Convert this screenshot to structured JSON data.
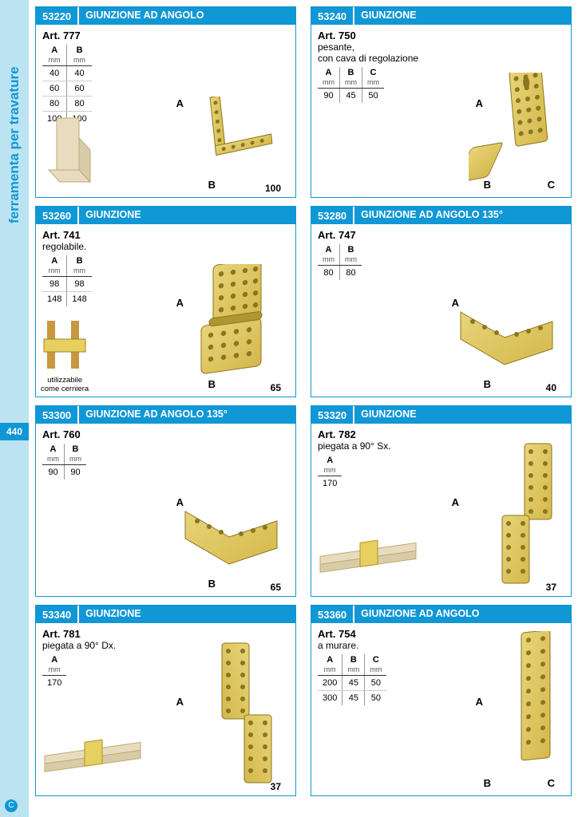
{
  "page": {
    "number": "440",
    "side_label": "ferramenta per travature",
    "accent_color": "#1097d5",
    "light_bg": "#bce3f2",
    "background": "#ffffff"
  },
  "cards": [
    {
      "code": "53220",
      "title": "GIUNZIONE AD ANGOLO",
      "art": "Art. 777",
      "sub": "",
      "columns": [
        "A",
        "B"
      ],
      "rows": [
        [
          "40",
          "40"
        ],
        [
          "60",
          "60"
        ],
        [
          "80",
          "80"
        ],
        [
          "100",
          "100"
        ]
      ],
      "dim_labels": {
        "A": "A",
        "B": "B",
        "len": "100"
      },
      "bracket_color": "#d4b84a"
    },
    {
      "code": "53240",
      "title": "GIUNZIONE",
      "art": "Art. 750",
      "sub": "pesante,\ncon cava di regolazione",
      "columns": [
        "A",
        "B",
        "C"
      ],
      "rows": [
        [
          "90",
          "45",
          "50"
        ]
      ],
      "dim_labels": {
        "A": "A",
        "B": "B",
        "C": "C"
      },
      "bracket_color": "#d4b84a"
    },
    {
      "code": "53260",
      "title": "GIUNZIONE",
      "art": "Art. 741",
      "sub": "regolabile.",
      "columns": [
        "A",
        "B"
      ],
      "rows": [
        [
          "98",
          "98"
        ],
        [
          "148",
          "148"
        ]
      ],
      "dim_labels": {
        "A": "A",
        "B": "B",
        "len": "65"
      },
      "note": "utilizzabile\ncome cerniera",
      "bracket_color": "#d4b84a"
    },
    {
      "code": "53280",
      "title": "GIUNZIONE AD ANGOLO 135°",
      "art": "Art. 747",
      "sub": "",
      "columns": [
        "A",
        "B"
      ],
      "rows": [
        [
          "80",
          "80"
        ]
      ],
      "dim_labels": {
        "A": "A",
        "B": "B",
        "len": "40"
      },
      "bracket_color": "#d4b84a"
    },
    {
      "code": "53300",
      "title": "GIUNZIONE AD ANGOLO 135°",
      "art": "Art. 760",
      "sub": "",
      "columns": [
        "A",
        "B"
      ],
      "rows": [
        [
          "90",
          "90"
        ]
      ],
      "dim_labels": {
        "A": "A",
        "B": "B",
        "len": "65"
      },
      "bracket_color": "#d4b84a"
    },
    {
      "code": "53320",
      "title": "GIUNZIONE",
      "art": "Art. 782",
      "sub": "piegata a 90° Sx.",
      "columns": [
        "A"
      ],
      "rows": [
        [
          "170"
        ]
      ],
      "dim_labels": {
        "A": "A",
        "len": "37"
      },
      "bracket_color": "#d4b84a"
    },
    {
      "code": "53340",
      "title": "GIUNZIONE",
      "art": "Art. 781",
      "sub": "piegata a 90° Dx.",
      "columns": [
        "A"
      ],
      "rows": [
        [
          "170"
        ]
      ],
      "dim_labels": {
        "A": "A",
        "len": "37"
      },
      "bracket_color": "#d4b84a"
    },
    {
      "code": "53360",
      "title": "GIUNZIONE AD ANGOLO",
      "art": "Art. 754",
      "sub": "a murare.",
      "columns": [
        "A",
        "B",
        "C"
      ],
      "rows": [
        [
          "200",
          "45",
          "50"
        ],
        [
          "300",
          "45",
          "50"
        ]
      ],
      "dim_labels": {
        "A": "A",
        "B": "B",
        "C": "C"
      },
      "bracket_color": "#d4b84a"
    }
  ]
}
